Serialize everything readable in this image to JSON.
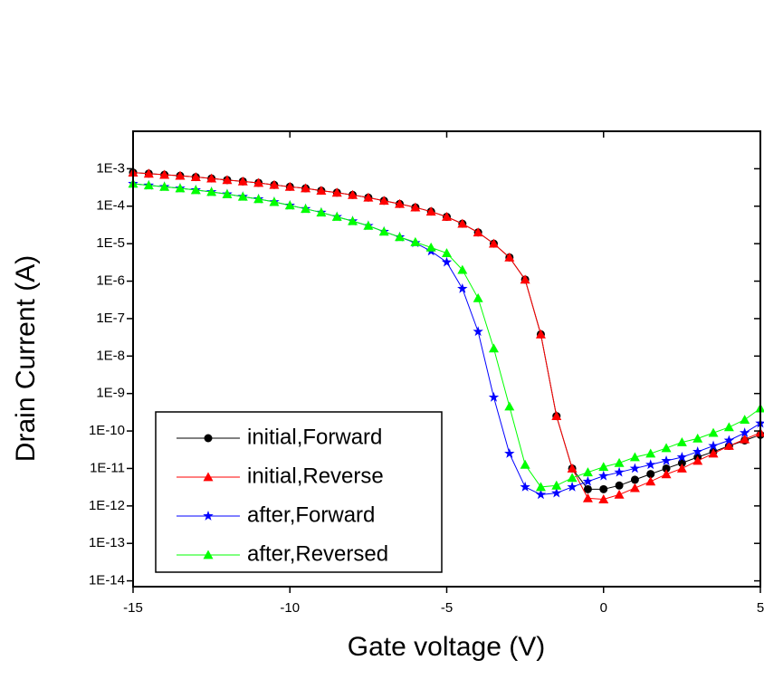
{
  "chart_data": {
    "type": "line",
    "xlabel": "Gate voltage (V)",
    "ylabel": "Drain Current (A)",
    "xlim": [
      -15,
      5
    ],
    "xticks": [
      -15,
      -10,
      -5,
      0,
      5
    ],
    "ylim": [
      7e-15,
      0.01
    ],
    "log_y": true,
    "yticks": [
      {
        "value": 1e-14,
        "label": "1E-14"
      },
      {
        "value": 1e-13,
        "label": "1E-13"
      },
      {
        "value": 1e-12,
        "label": "1E-12"
      },
      {
        "value": 1e-11,
        "label": "1E-11"
      },
      {
        "value": 1e-10,
        "label": "1E-10"
      },
      {
        "value": 1e-09,
        "label": "1E-9"
      },
      {
        "value": 1e-08,
        "label": "1E-8"
      },
      {
        "value": 1e-07,
        "label": "1E-7"
      },
      {
        "value": 1e-06,
        "label": "1E-6"
      },
      {
        "value": 1e-05,
        "label": "1E-5"
      },
      {
        "value": 0.0001,
        "label": "1E-4"
      },
      {
        "value": 0.001,
        "label": "1E-3"
      }
    ],
    "legend": "lower left",
    "x": [
      -15,
      -14.5,
      -14,
      -13.5,
      -13,
      -12.5,
      -12,
      -11.5,
      -11,
      -10.5,
      -10,
      -9.5,
      -9,
      -8.5,
      -8,
      -7.5,
      -7,
      -6.5,
      -6,
      -5.5,
      -5,
      -4.5,
      -4,
      -3.5,
      -3,
      -2.5,
      -2,
      -1.5,
      -1,
      -0.5,
      0,
      0.5,
      1,
      1.5,
      2,
      2.5,
      3,
      3.5,
      4,
      4.5,
      5
    ],
    "series": [
      {
        "name": "initial,Forward",
        "color": "#000000",
        "marker": "circle",
        "values": [
          0.00079,
          0.00074,
          0.00069,
          0.00065,
          0.0006,
          0.00055,
          0.0005,
          0.00046,
          0.00042,
          0.00037,
          0.00033,
          0.0003,
          0.00026,
          0.00023,
          0.0002,
          0.00017,
          0.00014,
          0.000115,
          9.3e-05,
          7.2e-05,
          5.2e-05,
          3.4e-05,
          2e-05,
          1e-05,
          4.3e-06,
          1.1e-06,
          3.8e-08,
          2.5e-10,
          1e-11,
          2.8e-12,
          2.8e-12,
          3.5e-12,
          5e-12,
          7.1e-12,
          1e-11,
          1.4e-11,
          2e-11,
          2.8e-11,
          4e-11,
          5.6e-11,
          7.9e-11
        ]
      },
      {
        "name": "initial,Reverse",
        "color": "#ff0000",
        "marker": "triangle",
        "values": [
          0.00079,
          0.00074,
          0.00069,
          0.00065,
          0.0006,
          0.00055,
          0.0005,
          0.00046,
          0.00042,
          0.00037,
          0.00033,
          0.0003,
          0.00026,
          0.00023,
          0.0002,
          0.00017,
          0.00014,
          0.000115,
          9.3e-05,
          7.2e-05,
          5.2e-05,
          3.4e-05,
          2e-05,
          1e-05,
          4.3e-06,
          1.1e-06,
          3.8e-08,
          2.5e-10,
          1e-11,
          1.6e-12,
          1.5e-12,
          2e-12,
          3e-12,
          4.5e-12,
          7e-12,
          1e-11,
          1.6e-11,
          2.5e-11,
          4e-11,
          6e-11,
          9e-11
        ]
      },
      {
        "name": "after,Forward",
        "color": "#0000ff",
        "marker": "star",
        "values": [
          0.0004,
          0.00036,
          0.00033,
          0.0003,
          0.00027,
          0.00024,
          0.00021,
          0.00018,
          0.000155,
          0.00013,
          0.000105,
          8.5e-05,
          6.8e-05,
          5.2e-05,
          4e-05,
          3e-05,
          2.1e-05,
          1.5e-05,
          1.05e-05,
          6.3e-06,
          3.2e-06,
          6.3e-07,
          4.5e-08,
          7.9e-10,
          2.5e-11,
          3.2e-12,
          2e-12,
          2.2e-12,
          3.2e-12,
          4.5e-12,
          6.3e-12,
          7.9e-12,
          1e-11,
          1.26e-11,
          1.6e-11,
          2e-11,
          2.8e-11,
          4e-11,
          5.6e-11,
          8.9e-11,
          1.6e-10
        ]
      },
      {
        "name": "after,Reversed",
        "color": "#00ff00",
        "marker": "triangle",
        "values": [
          0.0004,
          0.00036,
          0.00033,
          0.0003,
          0.00027,
          0.00024,
          0.00021,
          0.00018,
          0.000155,
          0.00013,
          0.000105,
          8.5e-05,
          6.8e-05,
          5.2e-05,
          4e-05,
          3e-05,
          2.1e-05,
          1.5e-05,
          1.1e-05,
          7.9e-06,
          5.6e-06,
          2e-06,
          3.5e-07,
          1.6e-08,
          4.5e-10,
          1.26e-11,
          3.2e-12,
          3.5e-12,
          5.6e-12,
          7.9e-12,
          1.1e-11,
          1.4e-11,
          2e-11,
          2.5e-11,
          3.5e-11,
          5e-11,
          6.3e-11,
          8.9e-11,
          1.26e-10,
          2e-10,
          4e-10
        ]
      }
    ]
  }
}
